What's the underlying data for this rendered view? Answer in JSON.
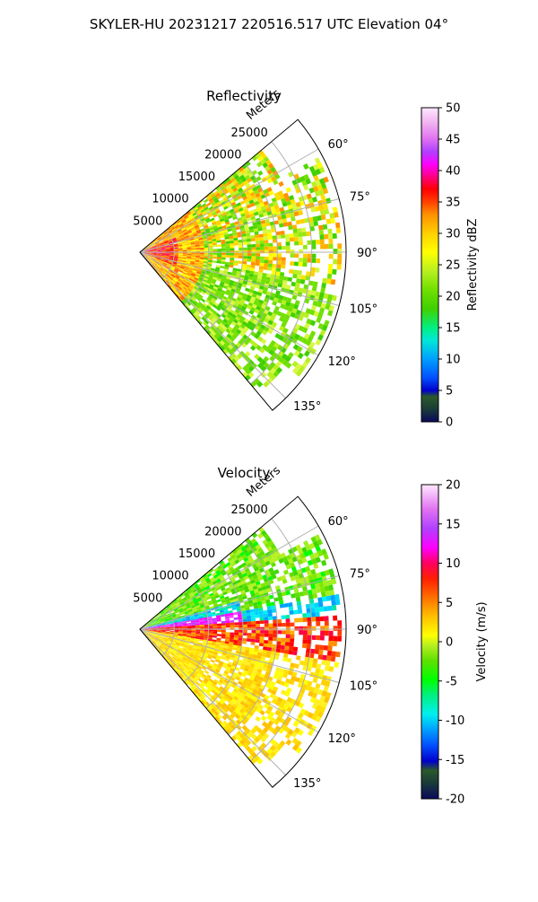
{
  "chart_data": {
    "type": "heatmap",
    "title": "SKYLER-HU  20231217  220516.517 UTC Elevation 04°",
    "panels": [
      {
        "title": "Reflectivity",
        "range_label": "Meters",
        "range_ticks": [
          "5000",
          "10000",
          "15000",
          "20000",
          "25000"
        ],
        "angle_ticks": [
          "60°",
          "75°",
          "90°",
          "105°",
          "120°",
          "135°"
        ],
        "azimuth_range_deg": [
          50,
          140
        ],
        "max_range_m": 30000,
        "colorbar": {
          "label": "Reflectivity dBZ",
          "ticks": [
            "0",
            "5",
            "10",
            "15",
            "20",
            "25",
            "30",
            "35",
            "40",
            "45",
            "50"
          ],
          "range": [
            0,
            50
          ]
        }
      },
      {
        "title": "Velocity",
        "range_label": "Meters",
        "range_ticks": [
          "5000",
          "10000",
          "15000",
          "20000",
          "25000"
        ],
        "angle_ticks": [
          "60°",
          "75°",
          "90°",
          "105°",
          "120°",
          "135°"
        ],
        "azimuth_range_deg": [
          50,
          140
        ],
        "max_range_m": 30000,
        "colorbar": {
          "label": "Velocity (m/s)",
          "ticks": [
            "-20",
            "-15",
            "-10",
            "-5",
            "0",
            "5",
            "10",
            "15",
            "20"
          ],
          "range": [
            -20,
            20
          ]
        }
      }
    ]
  }
}
